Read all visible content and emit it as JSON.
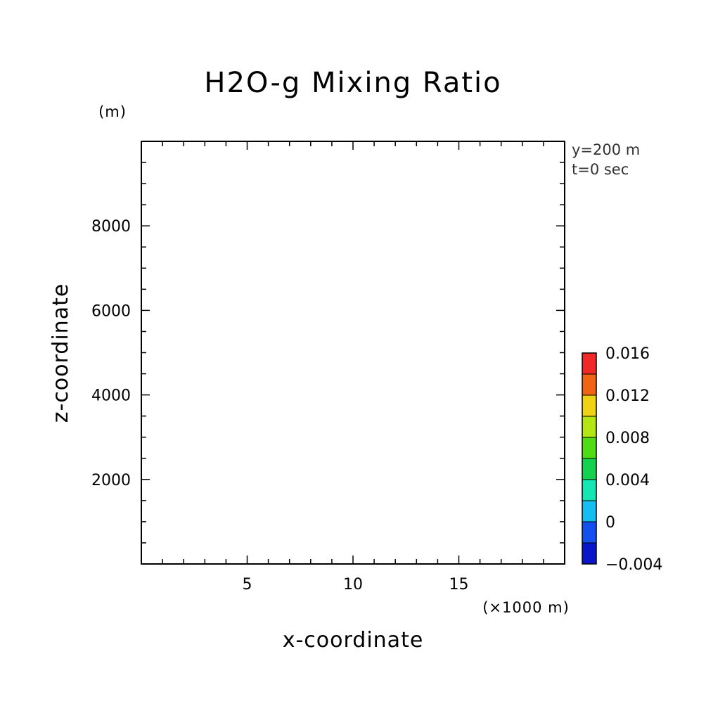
{
  "chart_data": {
    "type": "heatmap",
    "title": "H2O-g Mixing Ratio",
    "xlabel": "x-coordinate",
    "ylabel": "z-coordinate",
    "x_unit": "(×1000 m)",
    "y_unit": "(m)",
    "xlim": [
      0,
      20
    ],
    "ylim": [
      0,
      10000
    ],
    "x_ticks": [
      5,
      10,
      15
    ],
    "x_minor_step": 1,
    "y_ticks": [
      2000,
      4000,
      6000,
      8000
    ],
    "y_minor_step": 500,
    "annotations": [
      "y=200 m",
      "t=0 sec"
    ],
    "data": [],
    "colorbar": {
      "min": -0.004,
      "max": 0.016,
      "step": 0.002,
      "tick_labels": [
        "0.016",
        "0.012",
        "0.008",
        "0.004",
        "0",
        "−0.004"
      ],
      "tick_values": [
        0.016,
        0.012,
        0.008,
        0.004,
        0,
        -0.004
      ],
      "colors": [
        "#0a14c8",
        "#1450f0",
        "#14bef0",
        "#14e6b4",
        "#14d250",
        "#50dc14",
        "#b4e614",
        "#f0d214",
        "#f06414",
        "#f02828"
      ]
    }
  }
}
